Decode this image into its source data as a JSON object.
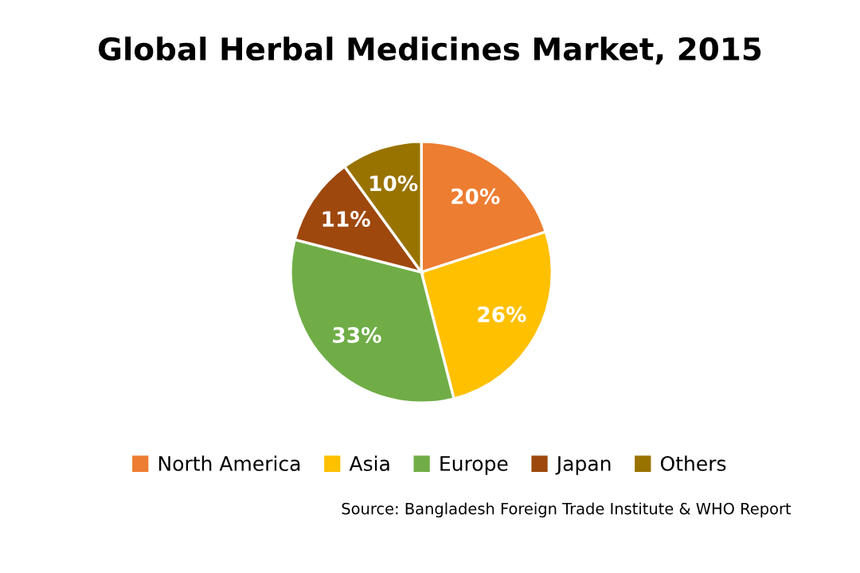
{
  "chart_data": {
    "type": "pie",
    "title": "Global Herbal Medicines Market, 2015",
    "categories": [
      "North America",
      "Asia",
      "Europe",
      "Japan",
      "Others"
    ],
    "values": [
      20,
      26,
      33,
      11,
      10
    ],
    "colors": [
      "#ed7d31",
      "#ffc000",
      "#70ad47",
      "#9e480e",
      "#997300"
    ],
    "value_labels": [
      "20%",
      "26%",
      "33%",
      "11%",
      "10%"
    ],
    "legend": "bottom",
    "annotations": [
      "Source: Bangladesh Foreign Trade Institute & WHO Report"
    ]
  }
}
